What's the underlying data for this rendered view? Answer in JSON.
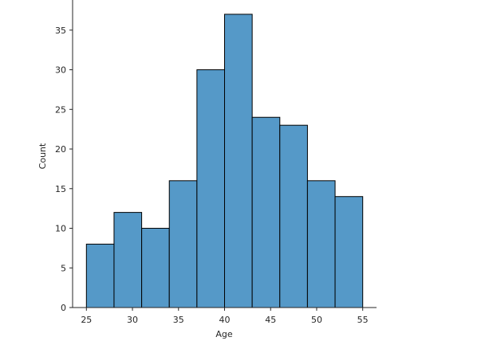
{
  "chart_data": {
    "type": "histogram",
    "title": "",
    "xlabel": "Age",
    "ylabel": "Count",
    "bin_edges": [
      25,
      28,
      31,
      34,
      37,
      40,
      43,
      46,
      49,
      52,
      55
    ],
    "counts": [
      8,
      12,
      10,
      16,
      30,
      37,
      24,
      23,
      16,
      14
    ],
    "xlim": [
      23.5,
      56.5
    ],
    "ylim": [
      0,
      38.8
    ],
    "xticks": [
      25,
      30,
      35,
      40,
      45,
      50,
      55
    ],
    "yticks": [
      0,
      5,
      10,
      15,
      20,
      25,
      30,
      35
    ],
    "grid": false,
    "legend": "none",
    "colors": {
      "bar_fill": "#5599c8",
      "bar_edge": "#000000",
      "axis": "#262626"
    }
  }
}
